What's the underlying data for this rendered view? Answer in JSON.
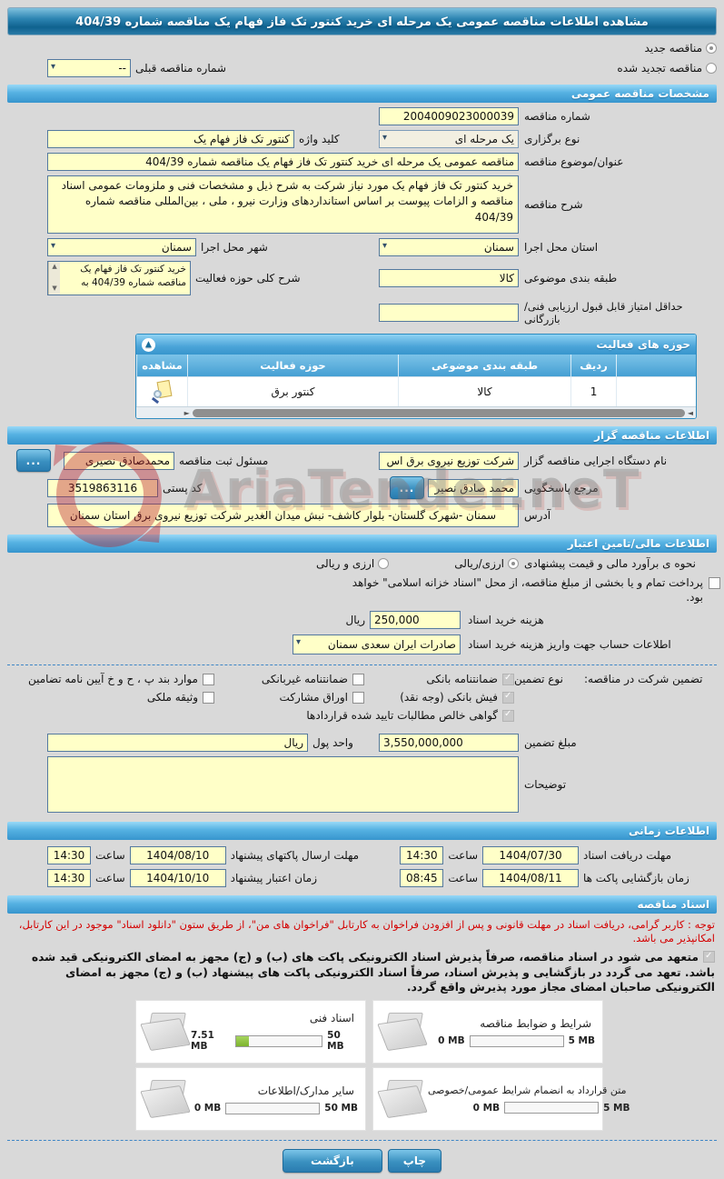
{
  "title": "مشاهده اطلاعات مناقصه عمومی یک مرحله ای خرید کنتور تک فاز فهام یک مناقصه شماره 404/39",
  "top": {
    "radio_new": "مناقصه جدید",
    "radio_renewed": "مناقصه تجدید شده",
    "prev_number_label": "شماره مناقصه قبلی",
    "prev_number_value": "--"
  },
  "sections": {
    "general": "مشخصات مناقصه عمومی",
    "tenderer": "اطلاعات مناقصه گزار",
    "financial": "اطلاعات مالی/تامین اعتبار",
    "timing": "اطلاعات زمانی",
    "documents": "اسناد مناقصه"
  },
  "general": {
    "number_label": "شماره مناقصه",
    "number_value": "2004009023000039",
    "type_label": "نوع برگزاری",
    "type_value": "یک مرحله ای",
    "keyword_label": "کلید واژه",
    "keyword_value": "کنتور تک فاز فهام یک",
    "subject_label": "عنوان/موضوع مناقصه",
    "subject_value": "مناقصه عمومی یک مرحله ای خرید کنتور تک فاز فهام یک مناقصه شماره 404/39",
    "desc_label": "شرح مناقصه",
    "desc_value": "خرید کنتور تک فاز فهام یک مورد نیاز شرکت به شرح ذیل و مشخصات فنی و ملزومات عمومی اسناد مناقصه و الزامات پیوست بر اساس استانداردهای وزارت نیرو ، ملی ، بین‌المللی  مناقصه شماره 404/39",
    "province_label": "استان محل اجرا",
    "province_value": "سمنان",
    "city_label": "شهر محل اجرا",
    "city_value": "سمنان",
    "category_label": "طبقه بندی موضوعی",
    "category_value": "کالا",
    "scope_label": "شرح کلی حوزه فعالیت",
    "scope_value": "خرید کنتور تک فاز فهام یک مناقصه شماره 404/39 به",
    "min_score_label": "حداقل امتیاز قابل قبول ارزیابی فنی/بازرگانی",
    "min_score_value": ""
  },
  "activity_table": {
    "title": "حوزه های فعالیت",
    "headers": [
      "ردیف",
      "طبقه بندی موضوعی",
      "حوزه فعالیت",
      "مشاهده"
    ],
    "rows": [
      {
        "index": "1",
        "category": "کالا",
        "field": "کنتور برق",
        "view_icon": "document-magnifier-icon"
      }
    ]
  },
  "tenderer": {
    "agency_label": "نام دستگاه اجرایی مناقصه گزار",
    "agency_value": "شرکت توزیع نیروی برق اس",
    "registrar_label": "مسئول ثبت مناقصه",
    "registrar_value": "محمدصادق نصیری",
    "browse_label": "...",
    "contact_label": "مرجع پاسخگویی",
    "contact_value": "محمد صادق نصیر",
    "postal_label": "کد پستی",
    "postal_value": "3519863116",
    "address_label": "آدرس",
    "address_value": "سمنان -شهرک گلستان- بلوار کاشف- نبش میدان الغدیر شرکت توزیع نیروی برق استان سمنان"
  },
  "financial": {
    "estimate_label": "نحوه ی برآورد مالی و قیمت پیشنهادی",
    "option_rial": "ارزی/ریالی",
    "option_both": "ارزی و ریالی",
    "treasury_note": "پرداخت تمام و یا بخشی از مبلغ مناقصه، از محل \"اسناد خزانه اسلامی\" خواهد بود.",
    "doc_fee_label": "هزینه خرید اسناد",
    "doc_fee_value": "250,000",
    "rial_label": "ریال",
    "account_label": "اطلاعات حساب جهت واریز هزینه خرید اسناد",
    "account_value": "صادرات ایران سعدی سمنان",
    "guarantee_label": "تضمین شرکت در مناقصه:",
    "guarantee_type_label": "نوع تضمین",
    "g1": "ضمانتنامه بانکی",
    "g2": "ضمانتنامه غیربانکی",
    "g3": "موارد بند پ ، ح و خ آیین نامه تضامین",
    "g4": "فیش بانکی (وجه نقد)",
    "g5": "اوراق مشارکت",
    "g6": "وثیقه ملکی",
    "g7": "گواهی خالص مطالبات تایید شده قراردادها",
    "amount_label": "مبلغ تضمین",
    "amount_value": "3,550,000,000",
    "currency_label": "واحد پول",
    "currency_value": "ریال",
    "notes_label": "توضیحات",
    "notes_value": ""
  },
  "timing": {
    "hour_label": "ساعت",
    "t1_label": "مهلت دریافت اسناد",
    "t1_date": "1404/07/30",
    "t1_time": "14:30",
    "t2_label": "مهلت ارسال پاکتهای پیشنهاد",
    "t2_date": "1404/08/10",
    "t2_time": "14:30",
    "t3_label": "زمان بازگشایی پاکت ها",
    "t3_date": "1404/08/11",
    "t3_time": "08:45",
    "t4_label": "زمان اعتبار پیشنهاد",
    "t4_date": "1404/10/10",
    "t4_time": "14:30"
  },
  "documents": {
    "notice": "توجه : کاربر گرامی، دریافت اسناد در مهلت قانونی و پس از افزودن فراخوان به کارتابل \"فراخوان های من\"، از طریق ستون \"دانلود اسناد\" موجود در این کارتابل، امکانپذیر می باشد.",
    "commitment": "متعهد می شود در اسناد مناقصه، صرفاً پذیرش اسناد الکترونیکی پاکت های (ب) و (ج) مجهز به امضای الکترونیکی قید شده باشد. تعهد می گردد در بازگشایی و پذیرش اسناد، صرفاً اسناد الکترونیکی پاکت های پیشنهاد (ب) و (ج) مجهز به امضای الکترونیکی صاحبان امضای مجاز مورد پذیرش واقع گردد.",
    "cards": [
      {
        "title": "شرایط و ضوابط مناقصه",
        "used": "0 MB",
        "max": "5 MB",
        "pct": "0%"
      },
      {
        "title": "اسناد فنی",
        "used": "7.51 MB",
        "max": "50 MB",
        "pct": "15%"
      },
      {
        "title": "متن قرارداد به انضمام شرایط عمومی/خصوصی",
        "used": "0 MB",
        "max": "5 MB",
        "pct": "0%"
      },
      {
        "title": "سایر مدارک/اطلاعات",
        "used": "0 MB",
        "max": "50 MB",
        "pct": "0%"
      }
    ]
  },
  "footer": {
    "print": "چاپ",
    "back": "بازگشت"
  },
  "watermark": "AriaTender.neT",
  "colors": {
    "field_bg": "#ffffc8",
    "header_blue": "#3795cd",
    "progress_green": "#8dc63f",
    "notice_red": "#d40000"
  }
}
